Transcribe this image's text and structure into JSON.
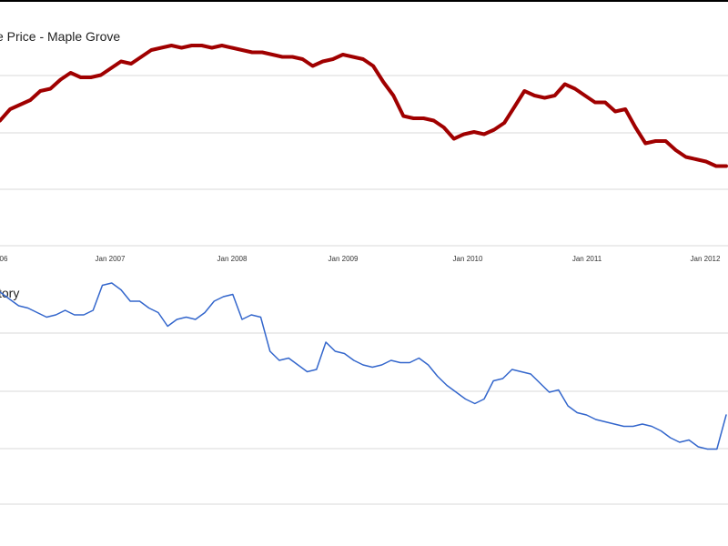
{
  "chart_data": [
    {
      "type": "line",
      "title": "e Price - Maple Grove",
      "xlabel": "",
      "ylabel": "",
      "grid": true,
      "x_tick_labels": [
        "06",
        "Jan 2007",
        "Jan 2008",
        "Jan 2009",
        "Jan 2010",
        "Jan 2011",
        "Jan 2012"
      ],
      "series": [
        {
          "color": "#a00000",
          "values": [
            0.55,
            0.6,
            0.62,
            0.64,
            0.68,
            0.69,
            0.73,
            0.76,
            0.74,
            0.74,
            0.75,
            0.78,
            0.81,
            0.8,
            0.83,
            0.86,
            0.87,
            0.88,
            0.87,
            0.88,
            0.88,
            0.87,
            0.88,
            0.87,
            0.86,
            0.85,
            0.85,
            0.84,
            0.83,
            0.83,
            0.82,
            0.79,
            0.81,
            0.82,
            0.84,
            0.83,
            0.82,
            0.79,
            0.72,
            0.66,
            0.57,
            0.56,
            0.56,
            0.55,
            0.52,
            0.47,
            0.49,
            0.5,
            0.49,
            0.51,
            0.54,
            0.61,
            0.68,
            0.66,
            0.65,
            0.66,
            0.71,
            0.69,
            0.66,
            0.63,
            0.63,
            0.59,
            0.6,
            0.52,
            0.45,
            0.46,
            0.46,
            0.42,
            0.39,
            0.38,
            0.37,
            0.35,
            0.35
          ]
        }
      ]
    },
    {
      "type": "line",
      "title": "tory",
      "xlabel": "",
      "ylabel": "",
      "grid": true,
      "series": [
        {
          "color": "#3366cc",
          "values": [
            0.92,
            0.89,
            0.86,
            0.85,
            0.83,
            0.81,
            0.82,
            0.84,
            0.82,
            0.82,
            0.84,
            0.95,
            0.96,
            0.93,
            0.88,
            0.88,
            0.85,
            0.83,
            0.77,
            0.8,
            0.81,
            0.8,
            0.83,
            0.88,
            0.9,
            0.91,
            0.8,
            0.82,
            0.81,
            0.66,
            0.62,
            0.63,
            0.6,
            0.57,
            0.58,
            0.7,
            0.66,
            0.65,
            0.62,
            0.6,
            0.59,
            0.6,
            0.62,
            0.61,
            0.61,
            0.63,
            0.6,
            0.55,
            0.51,
            0.48,
            0.45,
            0.43,
            0.45,
            0.53,
            0.54,
            0.58,
            0.57,
            0.56,
            0.52,
            0.48,
            0.49,
            0.42,
            0.39,
            0.38,
            0.36,
            0.35,
            0.34,
            0.33,
            0.33,
            0.34,
            0.33,
            0.31,
            0.28,
            0.26,
            0.27,
            0.24,
            0.23,
            0.23,
            0.38
          ]
        }
      ]
    }
  ]
}
